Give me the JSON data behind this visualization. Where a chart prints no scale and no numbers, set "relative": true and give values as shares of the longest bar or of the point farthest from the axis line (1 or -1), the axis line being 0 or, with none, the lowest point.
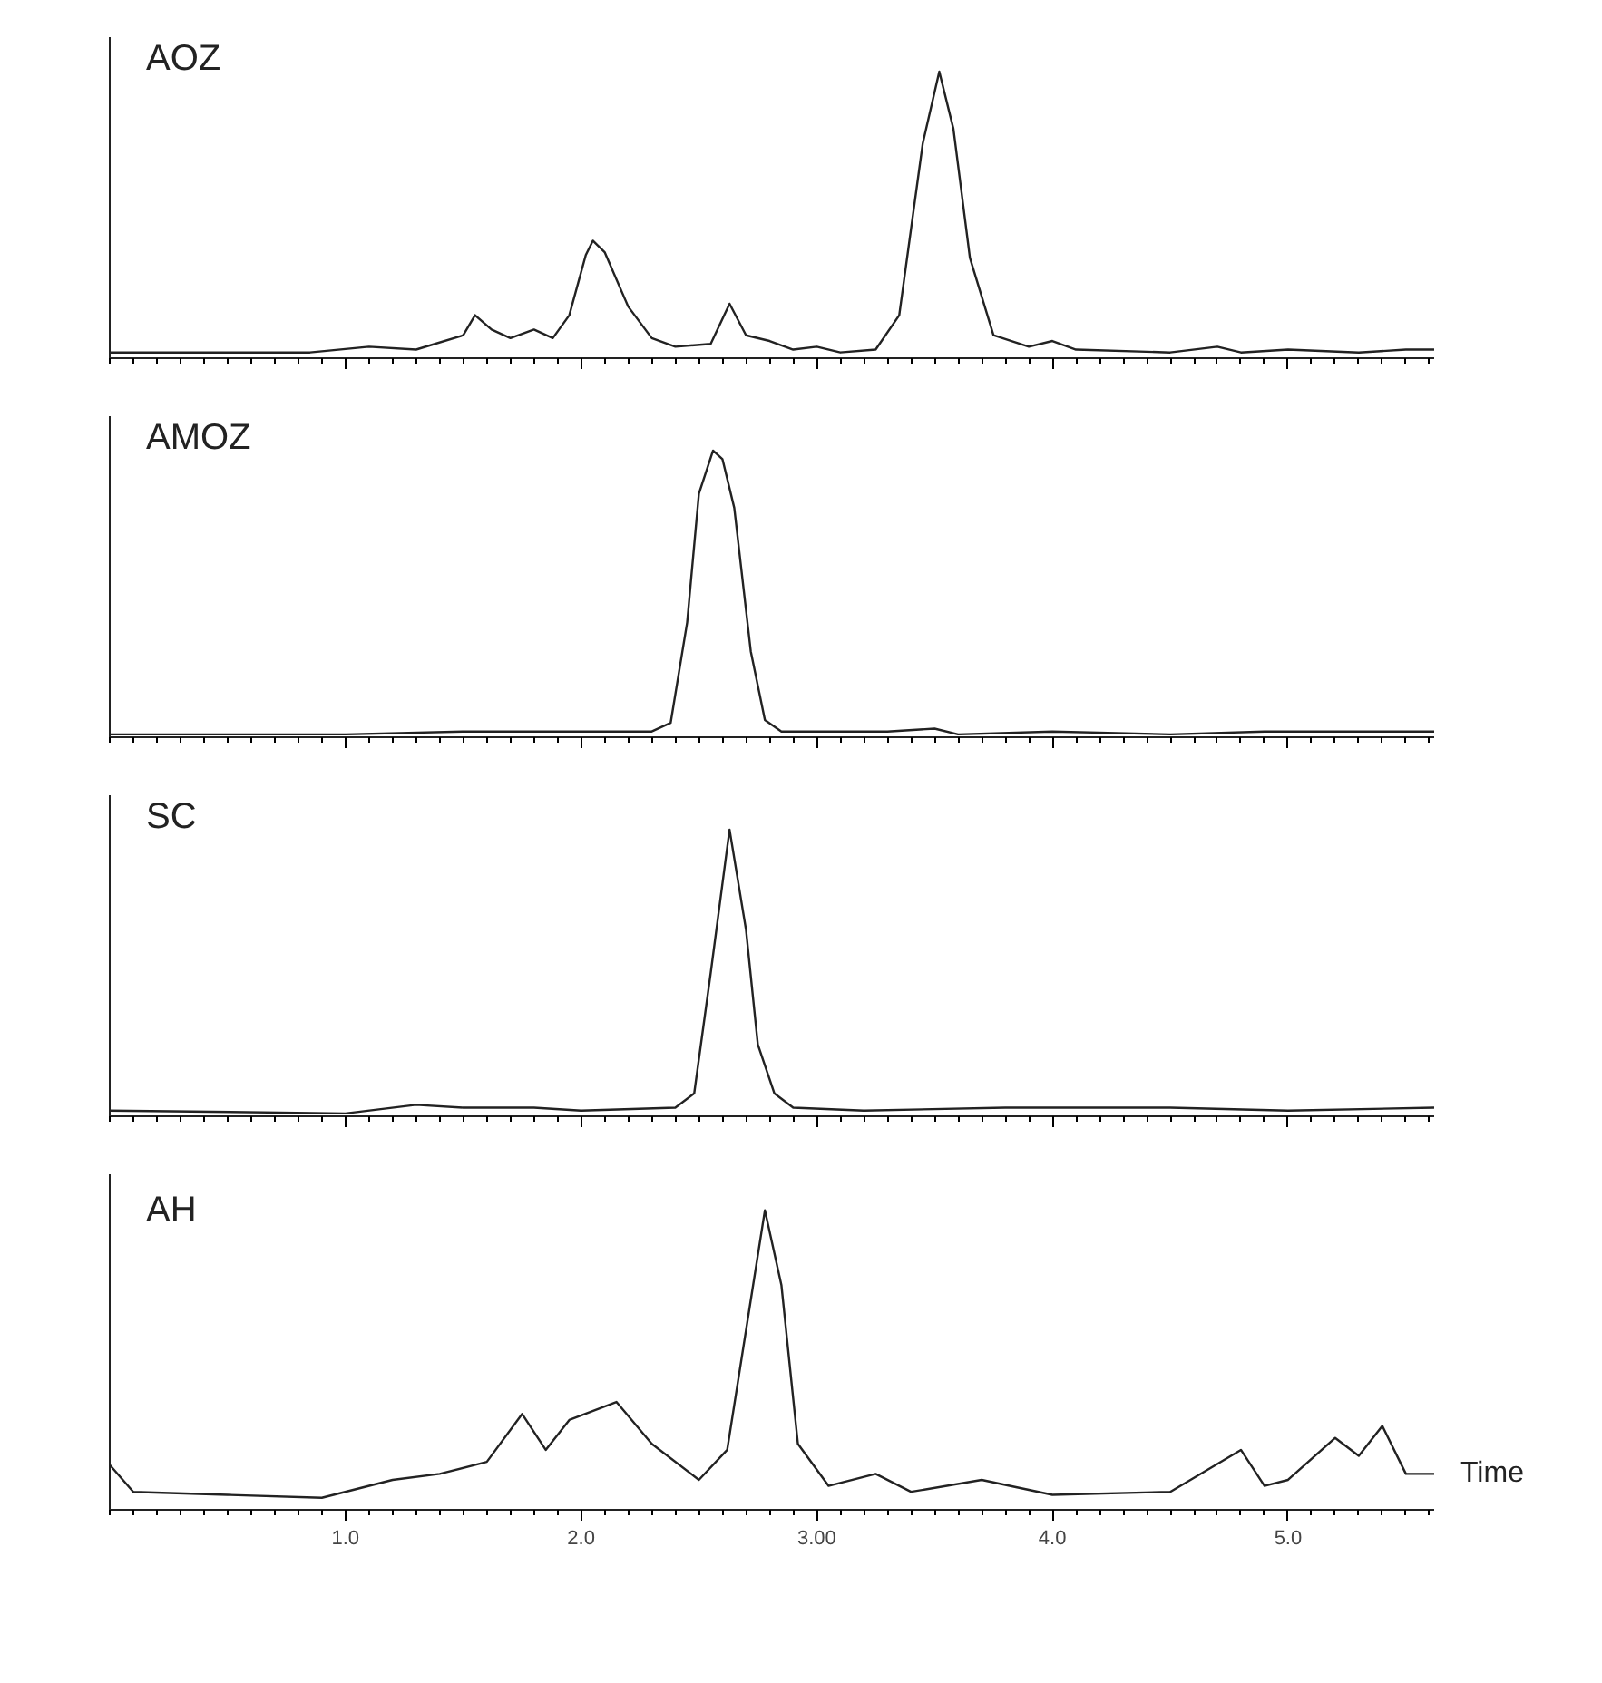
{
  "chart_data": [
    {
      "type": "line",
      "relative": true,
      "annotations": [
        "AOZ"
      ],
      "xlim": [
        0,
        5.62
      ],
      "xticks": [
        {
          "value": 1,
          "label": null
        },
        {
          "value": 2,
          "label": null
        },
        {
          "value": 3,
          "label": null
        },
        {
          "value": 4,
          "label": null
        },
        {
          "value": 5,
          "label": null
        }
      ],
      "tick_labels": false,
      "series": [
        {
          "color": "#222222",
          "x": [
            0,
            0.5,
            0.85,
            1.1,
            1.3,
            1.5,
            1.55,
            1.62,
            1.7,
            1.8,
            1.88,
            1.95,
            2.02,
            2.05,
            2.1,
            2.2,
            2.3,
            2.4,
            2.55,
            2.63,
            2.7,
            2.8,
            2.9,
            3.0,
            3.1,
            3.25,
            3.35,
            3.45,
            3.52,
            3.58,
            3.65,
            3.75,
            3.9,
            4.0,
            4.1,
            4.5,
            4.7,
            4.8,
            5.0,
            5.3,
            5.5,
            5.62
          ],
          "values": [
            0.02,
            0.02,
            0.02,
            0.04,
            0.03,
            0.08,
            0.15,
            0.1,
            0.07,
            0.1,
            0.07,
            0.15,
            0.36,
            0.41,
            0.37,
            0.18,
            0.07,
            0.04,
            0.05,
            0.19,
            0.08,
            0.06,
            0.03,
            0.04,
            0.02,
            0.03,
            0.15,
            0.75,
            1.0,
            0.8,
            0.35,
            0.08,
            0.04,
            0.06,
            0.03,
            0.02,
            0.04,
            0.02,
            0.03,
            0.02,
            0.03,
            0.03
          ]
        }
      ]
    },
    {
      "type": "line",
      "relative": true,
      "annotations": [
        "AMOZ"
      ],
      "xlim": [
        0,
        5.62
      ],
      "xticks": [
        {
          "value": 1,
          "label": null
        },
        {
          "value": 2,
          "label": null
        },
        {
          "value": 3,
          "label": null
        },
        {
          "value": 4,
          "label": null
        },
        {
          "value": 5,
          "label": null
        }
      ],
      "tick_labels": false,
      "series": [
        {
          "color": "#222222",
          "x": [
            0,
            1.0,
            1.5,
            2.0,
            2.3,
            2.38,
            2.45,
            2.5,
            2.56,
            2.6,
            2.65,
            2.72,
            2.78,
            2.85,
            3.3,
            3.5,
            3.6,
            4.0,
            4.5,
            4.9,
            5.62
          ],
          "values": [
            0.01,
            0.01,
            0.02,
            0.02,
            0.02,
            0.05,
            0.4,
            0.85,
            1.0,
            0.97,
            0.8,
            0.3,
            0.06,
            0.02,
            0.02,
            0.03,
            0.01,
            0.02,
            0.01,
            0.02,
            0.02
          ]
        }
      ]
    },
    {
      "type": "line",
      "relative": true,
      "annotations": [
        "SC"
      ],
      "xlim": [
        0,
        5.62
      ],
      "xticks": [
        {
          "value": 1,
          "label": null
        },
        {
          "value": 2,
          "label": null
        },
        {
          "value": 3,
          "label": null
        },
        {
          "value": 4,
          "label": null
        },
        {
          "value": 5,
          "label": null
        }
      ],
      "tick_labels": false,
      "series": [
        {
          "color": "#222222",
          "x": [
            0,
            1.0,
            1.3,
            1.5,
            1.8,
            2.0,
            2.4,
            2.48,
            2.55,
            2.63,
            2.7,
            2.75,
            2.82,
            2.9,
            3.2,
            3.8,
            4.5,
            5.0,
            5.62
          ],
          "values": [
            0.02,
            0.01,
            0.04,
            0.03,
            0.03,
            0.02,
            0.03,
            0.08,
            0.5,
            1.0,
            0.65,
            0.25,
            0.08,
            0.03,
            0.02,
            0.03,
            0.03,
            0.02,
            0.03
          ]
        }
      ]
    },
    {
      "type": "line",
      "relative": true,
      "annotations": [
        "AH"
      ],
      "xlabel": "Time",
      "xlim": [
        0,
        5.62
      ],
      "xticks": [
        {
          "value": 1,
          "label": "1.0"
        },
        {
          "value": 2,
          "label": "2.0"
        },
        {
          "value": 3,
          "label": "3.00"
        },
        {
          "value": 4,
          "label": "4.0"
        },
        {
          "value": 5,
          "label": "5.0"
        }
      ],
      "tick_labels": "x",
      "series": [
        {
          "color": "#222222",
          "x": [
            0,
            0.1,
            0.5,
            0.9,
            1.2,
            1.4,
            1.6,
            1.75,
            1.85,
            1.95,
            2.15,
            2.3,
            2.5,
            2.62,
            2.72,
            2.78,
            2.85,
            2.92,
            3.05,
            3.25,
            3.4,
            3.7,
            4.0,
            4.5,
            4.8,
            4.9,
            5.0,
            5.2,
            5.3,
            5.4,
            5.5,
            5.62
          ],
          "values": [
            0.15,
            0.06,
            0.05,
            0.04,
            0.1,
            0.12,
            0.16,
            0.32,
            0.2,
            0.3,
            0.36,
            0.22,
            0.1,
            0.2,
            0.7,
            1.0,
            0.75,
            0.22,
            0.08,
            0.12,
            0.06,
            0.1,
            0.05,
            0.06,
            0.2,
            0.08,
            0.1,
            0.24,
            0.18,
            0.28,
            0.12,
            0.12
          ]
        }
      ]
    }
  ]
}
